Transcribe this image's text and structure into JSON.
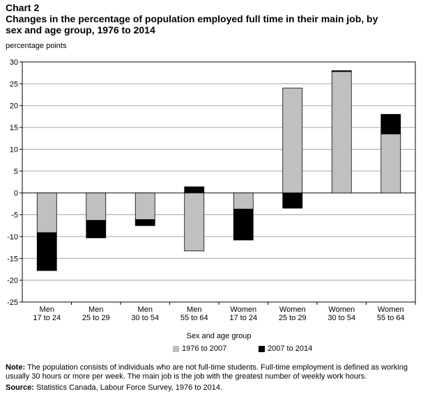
{
  "header": {
    "label": "Chart 2",
    "title": "Changes in the percentage of population employed full time in their main job, by sex and age group, 1976 to 2014"
  },
  "chart_data": {
    "type": "bar",
    "stacked": true,
    "ylabel": "percentage points",
    "xlabel": "Sex and age group",
    "ylim": [
      -25,
      30
    ],
    "yticks": [
      30,
      25,
      20,
      15,
      10,
      5,
      0,
      -5,
      -10,
      -15,
      -20,
      -25
    ],
    "grid": true,
    "legend_position": "bottom",
    "categories": [
      [
        "Men",
        "17 to 24"
      ],
      [
        "Men",
        "25 to 29"
      ],
      [
        "Men",
        "30 to 54"
      ],
      [
        "Men",
        "55 to 64"
      ],
      [
        "Women",
        "17 to 24"
      ],
      [
        "Women",
        "25 to 29"
      ],
      [
        "Women",
        "30 to 54"
      ],
      [
        "Women",
        "55 to 64"
      ]
    ],
    "series": [
      {
        "name": "1976 to 2007",
        "color": "#c0c0c0",
        "values": [
          -9.1,
          -6.3,
          -6.1,
          -13.3,
          -3.7,
          24.0,
          27.8,
          13.5
        ]
      },
      {
        "name": "2007 to 2014",
        "color": "#000000",
        "values": [
          -8.7,
          -4.0,
          -1.4,
          1.4,
          -7.1,
          -3.5,
          0.2,
          4.5
        ]
      }
    ]
  },
  "footer": {
    "note_label": "Note:",
    "note_text": " The population consists of individuals who are not full-time students. Full-time employment is defined as working usually 30 hours or more per week. The main job is the job with the greatest number of weekly work hours.",
    "source_label": "Source:",
    "source_text": " Statistics Canada, Labour Force Survey, 1976 to 2014."
  }
}
